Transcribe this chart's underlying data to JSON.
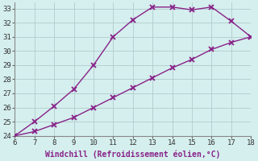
{
  "xlabel": "Windchill (Refroidissement éolien,°C)",
  "line1_x": [
    6,
    7,
    8,
    9,
    10,
    11,
    12,
    13,
    14,
    15,
    16,
    17,
    18
  ],
  "line1_y": [
    24.0,
    25.0,
    26.1,
    27.3,
    29.0,
    31.0,
    32.2,
    33.1,
    33.1,
    32.9,
    33.1,
    32.1,
    31.0
  ],
  "line2_x": [
    6,
    7,
    8,
    9,
    10,
    11,
    12,
    13,
    14,
    15,
    16,
    17,
    18
  ],
  "line2_y": [
    24.0,
    24.3,
    24.8,
    25.3,
    26.0,
    26.7,
    27.4,
    28.1,
    28.8,
    29.4,
    30.1,
    30.6,
    31.0
  ],
  "line_color": "#882288",
  "marker": "x",
  "marker_size": 4,
  "marker_lw": 1.3,
  "line_width": 1.0,
  "bg_color": "#d5efee",
  "grid_color": "#b0cccc",
  "xlim": [
    6,
    18
  ],
  "ylim": [
    24,
    33.4
  ],
  "xticks": [
    6,
    7,
    8,
    9,
    10,
    11,
    12,
    13,
    14,
    15,
    16,
    17,
    18
  ],
  "yticks": [
    24,
    25,
    26,
    27,
    28,
    29,
    30,
    31,
    32,
    33
  ],
  "tick_fontsize": 6.5,
  "xlabel_fontsize": 7.0
}
